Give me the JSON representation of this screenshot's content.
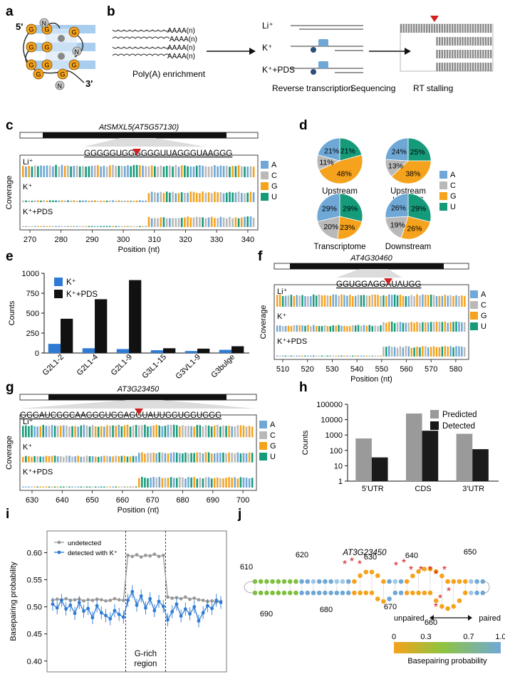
{
  "colors": {
    "A": "#6fa8d6",
    "C": "#b9b9b9",
    "G": "#f5a21c",
    "U": "#159a7a",
    "K": "#2f7bd4",
    "KPDS": "#111111",
    "predicted": "#9a9a9a",
    "detected": "#1a1a1a",
    "red": "#d21f1f",
    "undetected": "#999999",
    "detectedK": "#2f7bd4"
  },
  "panels": {
    "a": "a",
    "b": "b",
    "c": "c",
    "d": "d",
    "e": "e",
    "f": "f",
    "g": "g",
    "h": "h",
    "i": "i",
    "j": "j"
  },
  "panel_a": {
    "five": "5'",
    "three": "3'",
    "n": "N",
    "g": "G"
  },
  "panel_b": {
    "polya": "AAAA(n)",
    "step1": "Poly(A) enrichment",
    "step2": "Reverse transcription",
    "step3": "Sequencing",
    "step4": "RT stalling",
    "li": "Li⁺",
    "k": "K⁺",
    "kpds": "K⁺+PDS"
  },
  "common": {
    "li": "Li⁺",
    "k": "K⁺",
    "kpds": "K⁺+PDS",
    "coverage": "Coverage",
    "position": "Position (nt)",
    "legend": [
      "A",
      "C",
      "G",
      "U"
    ]
  },
  "panel_c": {
    "gene": "AtSMXL5(AT5G57130)",
    "seq": "GGGGGUGGGGGGUUAGGGUAAGGG",
    "xticks": [
      "270",
      "280",
      "290",
      "300",
      "310",
      "320",
      "330",
      "340"
    ]
  },
  "panel_f": {
    "gene": "AT4G30460",
    "seq": "GGUGGAGGAUAUGG",
    "xticks": [
      "510",
      "520",
      "530",
      "540",
      "550",
      "560",
      "570",
      "580"
    ]
  },
  "panel_g": {
    "gene": "AT3G23450",
    "seq": "GGGAUCGGCAAGGGUGGAGGUAUUGGUGGUGGG",
    "xticks": [
      "630",
      "640",
      "650",
      "660",
      "670",
      "680",
      "690",
      "700"
    ]
  },
  "chart_data": [
    {
      "type": "pie",
      "panel": "d",
      "legend": [
        "A",
        "C",
        "G",
        "U"
      ],
      "pies": [
        {
          "name": "Upstream K⁺",
          "title1": "Upstream",
          "title2": "K⁺",
          "values": [
            21,
            11,
            48,
            21
          ],
          "labels": [
            "21%",
            "11%",
            "48%",
            "21%"
          ]
        },
        {
          "name": "Upstream K⁺+PDS",
          "title1": "Upstream",
          "title2": "K⁺+PDS",
          "values": [
            24,
            13,
            38,
            25
          ],
          "labels": [
            "24%",
            "13%",
            "38%",
            "25%"
          ]
        },
        {
          "name": "Transcriptome",
          "title1": "Transcriptome",
          "title2": "",
          "values": [
            29,
            20,
            23,
            29
          ],
          "labels": [
            "29%",
            "20%",
            "23%",
            "29%"
          ]
        },
        {
          "name": "Downstream",
          "title1": "Downstream",
          "title2": "",
          "values": [
            26,
            19,
            26,
            29
          ],
          "labels": [
            "26%",
            "19%",
            "26%",
            "29%"
          ]
        }
      ]
    },
    {
      "type": "bar",
      "panel": "e",
      "ylabel": "Counts",
      "ylim": [
        0,
        1000
      ],
      "yticks": [
        "0",
        "250",
        "500",
        "750",
        "1000"
      ],
      "categories": [
        "G2L1-2",
        "G2L1-4",
        "G2L1-9",
        "G3L1-15",
        "G3VL1-9",
        "G3bulge"
      ],
      "series": [
        {
          "name": "K⁺",
          "values": [
            115,
            60,
            50,
            35,
            25,
            40
          ]
        },
        {
          "name": "K⁺+PDS",
          "values": [
            430,
            675,
            915,
            60,
            55,
            85
          ]
        }
      ]
    },
    {
      "type": "bar",
      "panel": "h",
      "ylabel": "Counts",
      "yscale": "log",
      "ylim": [
        1,
        100000
      ],
      "yticks": [
        "1",
        "10",
        "100",
        "1000",
        "10000",
        "100000"
      ],
      "categories": [
        "5'UTR",
        "CDS",
        "3'UTR"
      ],
      "series": [
        {
          "name": "Predicted",
          "values": [
            600,
            25000,
            1200
          ]
        },
        {
          "name": "Detected",
          "values": [
            35,
            1900,
            120
          ]
        }
      ]
    },
    {
      "type": "line",
      "panel": "i",
      "ylabel": "Basepairing probability",
      "ylim": [
        0.38,
        0.64
      ],
      "yticks": [
        "0.40",
        "0.45",
        "0.50",
        "0.55",
        "0.60"
      ],
      "region_label1": "G-rich",
      "region_label2": "region",
      "series": [
        {
          "name": "undetected",
          "values": [
            0.512,
            0.514,
            0.513,
            0.515,
            0.512,
            0.513,
            0.514,
            0.511,
            0.513,
            0.512,
            0.514,
            0.513,
            0.511,
            0.512,
            0.515,
            0.513,
            0.512,
            0.595,
            0.593,
            0.596,
            0.592,
            0.595,
            0.594,
            0.597,
            0.593,
            0.595,
            0.518,
            0.516,
            0.517,
            0.515,
            0.518,
            0.514,
            0.516,
            0.513,
            0.512,
            0.51,
            0.511,
            0.509,
            0.51
          ]
        },
        {
          "name": "detected with K⁺",
          "values": [
            0.505,
            0.498,
            0.512,
            0.496,
            0.503,
            0.488,
            0.508,
            0.492,
            0.497,
            0.48,
            0.502,
            0.489,
            0.484,
            0.478,
            0.493,
            0.486,
            0.481,
            0.512,
            0.528,
            0.503,
            0.52,
            0.498,
            0.515,
            0.493,
            0.51,
            0.501,
            0.476,
            0.491,
            0.505,
            0.483,
            0.496,
            0.487,
            0.5,
            0.474,
            0.489,
            0.502,
            0.497,
            0.512,
            0.508
          ]
        }
      ]
    }
  ],
  "panel_j": {
    "gene": "AT3G23450",
    "ticks": [
      "610",
      "620",
      "630",
      "640",
      "650",
      "660",
      "670",
      "680",
      "690"
    ],
    "unpaired": "unpaired",
    "paired": "paired",
    "scale": [
      "0",
      "0.3",
      "0.7",
      "1.0"
    ],
    "bp_label": "Basepairing probability"
  }
}
